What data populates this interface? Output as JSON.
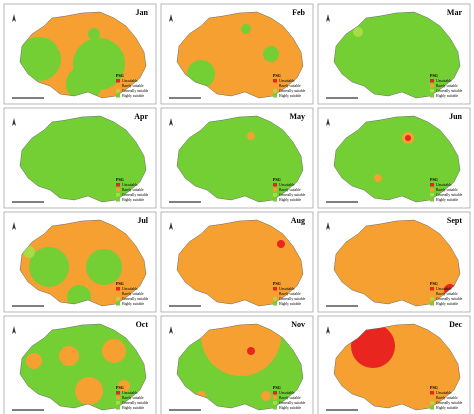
{
  "months": [
    "Jan",
    "Feb",
    "Mar",
    "Apr",
    "May",
    "Jun",
    "Jul",
    "Aug",
    "Sept",
    "Oct",
    "Nov",
    "Dec"
  ],
  "legend": {
    "title": "PSG",
    "items": [
      {
        "name": "Unsuitable",
        "color": "#e8251e"
      },
      {
        "name": "Barely suitable",
        "color": "#f5a030"
      },
      {
        "name": "Generally suitable",
        "color": "#a6dc45"
      },
      {
        "name": "Highly suitable",
        "color": "#74cf34"
      }
    ]
  }
}
